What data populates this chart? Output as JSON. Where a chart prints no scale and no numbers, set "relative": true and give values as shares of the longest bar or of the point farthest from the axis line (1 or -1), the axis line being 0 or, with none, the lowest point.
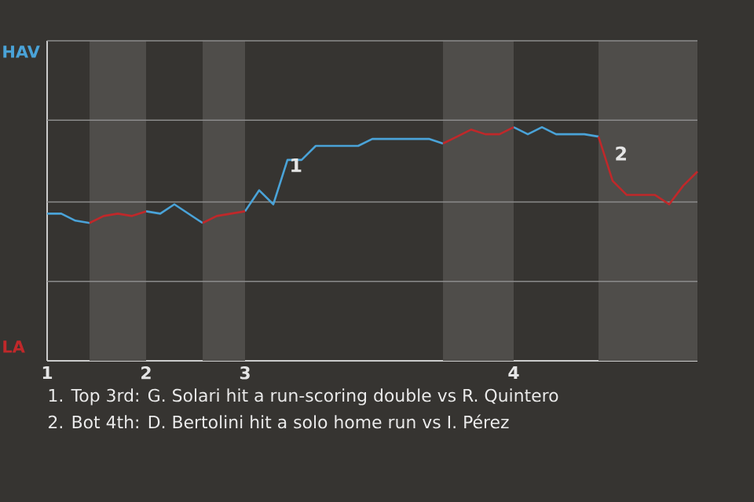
{
  "chart_data": {
    "type": "line",
    "relative": true,
    "categories": [
      "1",
      null,
      null,
      null,
      null,
      null,
      null,
      "2",
      null,
      null,
      null,
      null,
      null,
      null,
      "3",
      null,
      null,
      null,
      null,
      null,
      null,
      null,
      null,
      null,
      null,
      null,
      null,
      null,
      null,
      null,
      null,
      null,
      null,
      "4",
      null,
      null,
      null,
      null,
      null,
      null,
      null,
      null,
      null,
      null,
      null,
      null,
      null
    ],
    "marker": "none",
    "line_style": "solid",
    "series": [
      {
        "color": "#4aa3d8",
        "values": [
          0.63,
          0.63,
          0.6,
          0.59,
          null,
          null,
          null,
          0.64,
          0.63,
          0.67,
          0.63,
          0.59,
          null,
          null,
          0.64,
          0.73,
          0.67,
          0.86,
          0.86,
          0.92,
          0.92,
          0.92,
          0.92,
          0.95,
          0.95,
          0.95,
          0.95,
          0.95,
          0.93,
          null,
          null,
          null,
          null,
          1,
          0.97,
          1,
          0.97,
          0.97,
          0.97,
          0.96,
          null,
          null,
          null,
          null,
          null,
          null,
          null
        ]
      },
      {
        "color": "#c0282a",
        "values": [
          null,
          null,
          null,
          0.59,
          0.62,
          0.63,
          0.62,
          0.64,
          null,
          null,
          null,
          0.59,
          0.62,
          0.63,
          0.64,
          null,
          null,
          null,
          null,
          null,
          null,
          null,
          null,
          null,
          null,
          null,
          null,
          null,
          0.93,
          0.96,
          0.99,
          0.97,
          0.97,
          1,
          null,
          null,
          null,
          null,
          null,
          0.96,
          0.77,
          0.71,
          0.71,
          0.71,
          0.67,
          0.75,
          0.81
        ]
      }
    ],
    "ref_lines": [
      {
        "axis": "y",
        "value": 0.34,
        "color": "#8c8c8c"
      },
      {
        "axis": "y",
        "value": 0.68,
        "color": "#8c8c8c"
      },
      {
        "axis": "y",
        "value": 1.03,
        "color": "#8c8c8c"
      },
      {
        "axis": "y",
        "value": 1.37,
        "color": "#8c8c8c"
      }
    ],
    "annotations": [
      "HAV",
      "LA",
      "1",
      "2",
      "1. Top 3rd: G. Solari hit a run-scoring double vs R. Quintero",
      "2. Bot 4th: D. Bertolini hit a solo home run vs I. Pérez"
    ]
  }
}
